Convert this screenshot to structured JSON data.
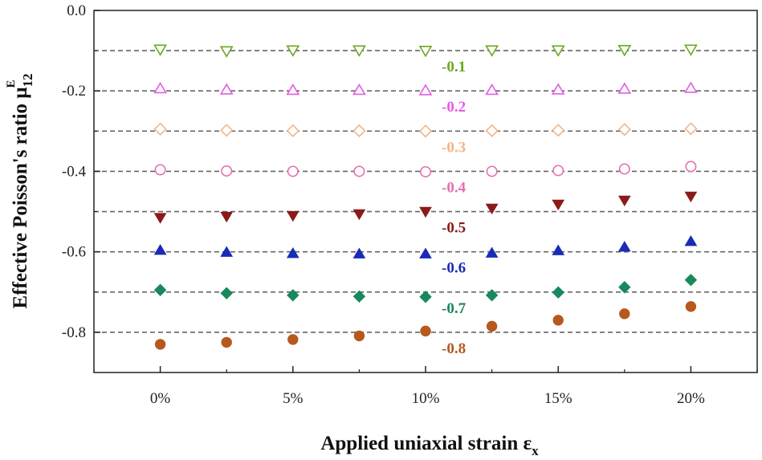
{
  "chart_data": {
    "type": "scatter",
    "xlabel": "Applied uniaxial strain ε",
    "xlabel_sub": "x",
    "ylabel": "Effective Poisson's ratio μ",
    "ylabel_sub": "12",
    "ylabel_sup": "E",
    "x": [
      0,
      2.5,
      5,
      7.5,
      10,
      12.5,
      15,
      17.5,
      20
    ],
    "xticks": [
      0,
      5,
      10,
      15,
      20
    ],
    "xtick_labels": [
      "0%",
      "5%",
      "10%",
      "15%",
      "20%"
    ],
    "xlim": [
      -2.5,
      22.5
    ],
    "ylim": [
      -0.9,
      0.0
    ],
    "yticks": [
      0.0,
      -0.2,
      -0.4,
      -0.6,
      -0.8
    ],
    "ytick_labels": [
      "0.0",
      "-0.2",
      "-0.4",
      "-0.6",
      "-0.8"
    ],
    "grid": false,
    "legend": "none",
    "series": [
      {
        "name": "-0.1",
        "ref": -0.1,
        "color": "#6aa820",
        "marker": "triangle-down-open",
        "values": [
          -0.097,
          -0.101,
          -0.099,
          -0.099,
          -0.1,
          -0.099,
          -0.099,
          -0.098,
          -0.097
        ]
      },
      {
        "name": "-0.2",
        "ref": -0.2,
        "color": "#e45ce4",
        "marker": "triangle-up-open",
        "values": [
          -0.194,
          -0.197,
          -0.198,
          -0.198,
          -0.199,
          -0.198,
          -0.197,
          -0.195,
          -0.193
        ]
      },
      {
        "name": "-0.3",
        "ref": -0.3,
        "color": "#f2b488",
        "marker": "diamond-open",
        "values": [
          -0.295,
          -0.298,
          -0.299,
          -0.299,
          -0.3,
          -0.299,
          -0.298,
          -0.296,
          -0.294
        ]
      },
      {
        "name": "-0.4",
        "ref": -0.4,
        "color": "#e46fb0",
        "marker": "circle-open",
        "values": [
          -0.396,
          -0.399,
          -0.4,
          -0.4,
          -0.401,
          -0.4,
          -0.398,
          -0.394,
          -0.388
        ]
      },
      {
        "name": "-0.5",
        "ref": -0.5,
        "color": "#8b1a1a",
        "marker": "triangle-down",
        "values": [
          -0.515,
          -0.512,
          -0.51,
          -0.506,
          -0.5,
          -0.492,
          -0.482,
          -0.472,
          -0.462
        ]
      },
      {
        "name": "-0.6",
        "ref": -0.6,
        "color": "#1a2bb5",
        "marker": "triangle-up",
        "values": [
          -0.596,
          -0.601,
          -0.604,
          -0.605,
          -0.605,
          -0.603,
          -0.597,
          -0.588,
          -0.574
        ]
      },
      {
        "name": "-0.7",
        "ref": -0.7,
        "color": "#17895c",
        "marker": "diamond",
        "values": [
          -0.695,
          -0.703,
          -0.708,
          -0.711,
          -0.712,
          -0.708,
          -0.701,
          -0.688,
          -0.67
        ]
      },
      {
        "name": "-0.8",
        "ref": -0.8,
        "color": "#b7581c",
        "marker": "circle",
        "values": [
          -0.83,
          -0.825,
          -0.818,
          -0.809,
          -0.797,
          -0.785,
          -0.77,
          -0.754,
          -0.736
        ]
      }
    ],
    "reference_lines": [
      -0.1,
      -0.2,
      -0.3,
      -0.4,
      -0.5,
      -0.6,
      -0.7,
      -0.8
    ],
    "reference_labels": [
      "-0.1",
      "-0.2",
      "-0.3",
      "-0.4",
      "-0.5",
      "-0.6",
      "-0.7",
      "-0.8"
    ]
  }
}
